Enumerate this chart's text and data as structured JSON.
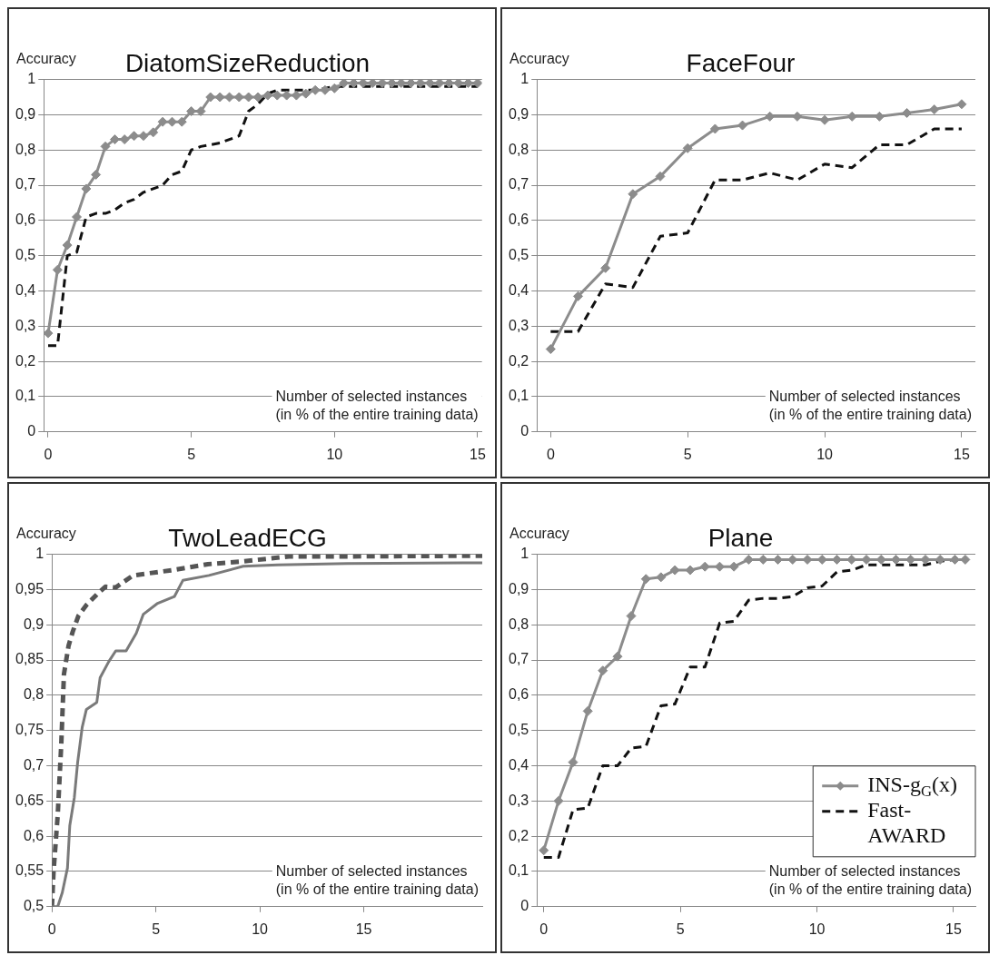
{
  "chart_data": [
    {
      "type": "line",
      "title": "DiatomSizeReduction",
      "ylabel": "Accuracy",
      "xlabel": "Number of selected instances\n(in % of the entire training data)",
      "grid": "y",
      "xlim": [
        -0.15,
        15.15
      ],
      "xticks": [
        0,
        5,
        10,
        15
      ],
      "ylim": [
        0,
        1
      ],
      "yticks": [
        {
          "value": 0,
          "label": "0"
        },
        {
          "value": 0.1,
          "label": "0,1"
        },
        {
          "value": 0.2,
          "label": "0,2"
        },
        {
          "value": 0.3,
          "label": "0,3"
        },
        {
          "value": 0.4,
          "label": "0,4"
        },
        {
          "value": 0.5,
          "label": "0,5"
        },
        {
          "value": 0.6,
          "label": "0,6"
        },
        {
          "value": 0.7,
          "label": "0,7"
        },
        {
          "value": 0.8,
          "label": "0,8"
        },
        {
          "value": 0.9,
          "label": "0,9"
        },
        {
          "value": 1,
          "label": "1"
        }
      ],
      "x": [
        0,
        0.33,
        0.67,
        1,
        1.33,
        1.67,
        2,
        2.33,
        2.67,
        3,
        3.33,
        3.67,
        4,
        4.33,
        4.67,
        5,
        5.33,
        5.67,
        6,
        6.33,
        6.67,
        7,
        7.33,
        7.67,
        8,
        8.33,
        8.67,
        9,
        9.33,
        9.67,
        10,
        10.33,
        10.67,
        11,
        11.33,
        11.67,
        12,
        12.33,
        12.67,
        13,
        13.33,
        13.67,
        14,
        14.33,
        14.67,
        15
      ],
      "series": [
        {
          "color": "#8c8c8c",
          "marker": "diamond",
          "line_style": "solid",
          "values": [
            0.28,
            0.46,
            0.53,
            0.61,
            0.69,
            0.73,
            0.81,
            0.83,
            0.83,
            0.84,
            0.84,
            0.85,
            0.88,
            0.88,
            0.88,
            0.91,
            0.91,
            0.95,
            0.95,
            0.95,
            0.95,
            0.95,
            0.95,
            0.955,
            0.955,
            0.955,
            0.955,
            0.96,
            0.97,
            0.97,
            0.975,
            0.99,
            0.99,
            0.99,
            0.99,
            0.99,
            0.99,
            0.99,
            0.99,
            0.99,
            0.99,
            0.99,
            0.99,
            0.99,
            0.99,
            0.99
          ]
        },
        {
          "color": "#111111",
          "marker": "none",
          "line_style": "dashed",
          "values": [
            0.245,
            0.245,
            0.5,
            0.51,
            0.61,
            0.62,
            0.62,
            0.63,
            0.65,
            0.66,
            0.68,
            0.69,
            0.7,
            0.73,
            0.74,
            0.8,
            0.81,
            0.815,
            0.82,
            0.83,
            0.84,
            0.91,
            0.93,
            0.96,
            0.97,
            0.97,
            0.97,
            0.97,
            0.97,
            0.975,
            0.98,
            0.98,
            0.98,
            0.98,
            0.98,
            0.98,
            0.98,
            0.98,
            0.98,
            0.98,
            0.98,
            0.98,
            0.98,
            0.98,
            0.98,
            0.98
          ]
        }
      ]
    },
    {
      "type": "line",
      "title": "FaceFour",
      "ylabel": "Accuracy",
      "xlabel": "Number of selected instances\n(in % of the entire training data)",
      "grid": "y",
      "xlim": [
        -0.5,
        15.5
      ],
      "xticks": [
        0,
        5,
        10,
        15
      ],
      "ylim": [
        0,
        1
      ],
      "yticks": [
        {
          "value": 0,
          "label": "0"
        },
        {
          "value": 0.1,
          "label": "0,1"
        },
        {
          "value": 0.2,
          "label": "0,2"
        },
        {
          "value": 0.3,
          "label": "0,3"
        },
        {
          "value": 0.4,
          "label": "0,4"
        },
        {
          "value": 0.5,
          "label": "0,5"
        },
        {
          "value": 0.6,
          "label": "0,6"
        },
        {
          "value": 0.7,
          "label": "0,7"
        },
        {
          "value": 0.8,
          "label": "0,8"
        },
        {
          "value": 0.9,
          "label": "0,9"
        },
        {
          "value": 1,
          "label": "1"
        }
      ],
      "x": [
        0,
        1,
        2,
        3,
        4,
        5,
        6,
        7,
        8,
        9,
        10,
        11,
        12,
        13,
        14,
        15
      ],
      "series": [
        {
          "color": "#8c8c8c",
          "marker": "diamond",
          "line_style": "solid",
          "values": [
            0.235,
            0.385,
            0.465,
            0.675,
            0.725,
            0.805,
            0.86,
            0.87,
            0.895,
            0.895,
            0.885,
            0.895,
            0.895,
            0.905,
            0.915,
            0.93
          ]
        },
        {
          "color": "#111111",
          "marker": "none",
          "line_style": "dashed",
          "values": [
            0.285,
            0.285,
            0.42,
            0.41,
            0.555,
            0.565,
            0.715,
            0.715,
            0.735,
            0.715,
            0.76,
            0.75,
            0.815,
            0.815,
            0.86,
            0.86
          ]
        }
      ]
    },
    {
      "type": "line",
      "title": "TwoLeadECG",
      "ylabel": "Accuracy",
      "xlabel": "Number of selected instances\n(in % of the entire training data)",
      "grid": "y",
      "xlim": [
        0,
        20.7
      ],
      "xticks": [
        0,
        5,
        10,
        15
      ],
      "ylim": [
        0.5,
        1
      ],
      "yticks": [
        {
          "value": 0.5,
          "label": "0,5"
        },
        {
          "value": 0.55,
          "label": "0,55"
        },
        {
          "value": 0.6,
          "label": "0,6"
        },
        {
          "value": 0.65,
          "label": "0,65"
        },
        {
          "value": 0.7,
          "label": "0,7"
        },
        {
          "value": 0.75,
          "label": "0,75"
        },
        {
          "value": 0.8,
          "label": "0,8"
        },
        {
          "value": 0.85,
          "label": "0,85"
        },
        {
          "value": 0.9,
          "label": "0,9"
        },
        {
          "value": 0.95,
          "label": "0,95"
        },
        {
          "value": 1,
          "label": "1"
        }
      ],
      "series": [
        {
          "color": "#7a7a7a",
          "marker": "none",
          "line_style": "solid",
          "x": [
            0,
            0.28,
            0.5,
            0.75,
            0.86,
            1.08,
            1.24,
            1.46,
            1.66,
            2.16,
            2.32,
            2.74,
            3.07,
            3.57,
            4.06,
            4.4,
            5.06,
            5.89,
            6.3,
            7.55,
            9.2,
            10.86,
            14.2,
            20.7
          ],
          "values": [
            0.5,
            0.5,
            0.52,
            0.555,
            0.615,
            0.655,
            0.705,
            0.755,
            0.78,
            0.79,
            0.825,
            0.848,
            0.863,
            0.863,
            0.888,
            0.915,
            0.93,
            0.94,
            0.963,
            0.97,
            0.983,
            0.985,
            0.987,
            0.988
          ]
        },
        {
          "color": "#555555",
          "marker": "none",
          "line_style": "dashed",
          "x": [
            0,
            0.08,
            0.28,
            0.45,
            0.58,
            0.8,
            1,
            1.28,
            1.66,
            2.16,
            2.57,
            3.07,
            3.9,
            5.9,
            7.5,
            9.2,
            11.4,
            14.2,
            20.7
          ],
          "values": [
            0.5,
            0.55,
            0.63,
            0.73,
            0.83,
            0.87,
            0.89,
            0.913,
            0.928,
            0.943,
            0.954,
            0.953,
            0.97,
            0.978,
            0.986,
            0.99,
            0.997,
            0.997,
            0.998
          ]
        }
      ]
    },
    {
      "type": "line",
      "title": "Plane",
      "ylabel": "Accuracy",
      "xlabel": "Number of selected instances\n(in % of the entire training data)",
      "grid": "y",
      "legend": "bottom right",
      "xlim": [
        -0.25,
        15.8
      ],
      "xticks": [
        0,
        5,
        10,
        15
      ],
      "ylim": [
        0,
        1
      ],
      "yticks": [
        {
          "value": 0,
          "label": "0"
        },
        {
          "value": 0.1,
          "label": "0,1"
        },
        {
          "value": 0.2,
          "label": "0,2"
        },
        {
          "value": 0.3,
          "label": "0,3"
        },
        {
          "value": 0.4,
          "label": "0,4"
        },
        {
          "value": 0.5,
          "label": "0,5"
        },
        {
          "value": 0.6,
          "label": "0,6"
        },
        {
          "value": 0.7,
          "label": "0,7"
        },
        {
          "value": 0.8,
          "label": "0,8"
        },
        {
          "value": 0.9,
          "label": "0,9"
        },
        {
          "value": 1,
          "label": "1"
        }
      ],
      "x": [
        0,
        0.54,
        1.07,
        1.61,
        2.16,
        2.7,
        3.2,
        3.74,
        4.29,
        4.8,
        5.36,
        5.9,
        6.44,
        6.96,
        7.5,
        8.03,
        8.57,
        9.11,
        9.65,
        10.19,
        10.73,
        11.27,
        11.81,
        12.35,
        12.89,
        13.43,
        13.97,
        14.51,
        15.05,
        15.43
      ],
      "series": [
        {
          "name": "INS-g$_{G}$(x)",
          "color": "#8c8c8c",
          "marker": "diamond",
          "line_style": "solid",
          "values": [
            0.16,
            0.3,
            0.41,
            0.555,
            0.67,
            0.71,
            0.825,
            0.93,
            0.935,
            0.955,
            0.955,
            0.965,
            0.965,
            0.965,
            0.985,
            0.985,
            0.985,
            0.985,
            0.985,
            0.985,
            0.985,
            0.985,
            0.985,
            0.985,
            0.985,
            0.985,
            0.985,
            0.985,
            0.985,
            0.985
          ]
        },
        {
          "name": "Fast-AWARD",
          "color": "#111111",
          "marker": "none",
          "line_style": "dashed",
          "values": [
            0.14,
            0.14,
            0.275,
            0.28,
            0.4,
            0.4,
            0.45,
            0.455,
            0.57,
            0.575,
            0.68,
            0.68,
            0.805,
            0.81,
            0.87,
            0.875,
            0.875,
            0.88,
            0.905,
            0.91,
            0.95,
            0.955,
            0.97,
            0.97,
            0.97,
            0.97,
            0.97,
            0.98,
            0.985,
            0.985
          ]
        }
      ]
    }
  ]
}
